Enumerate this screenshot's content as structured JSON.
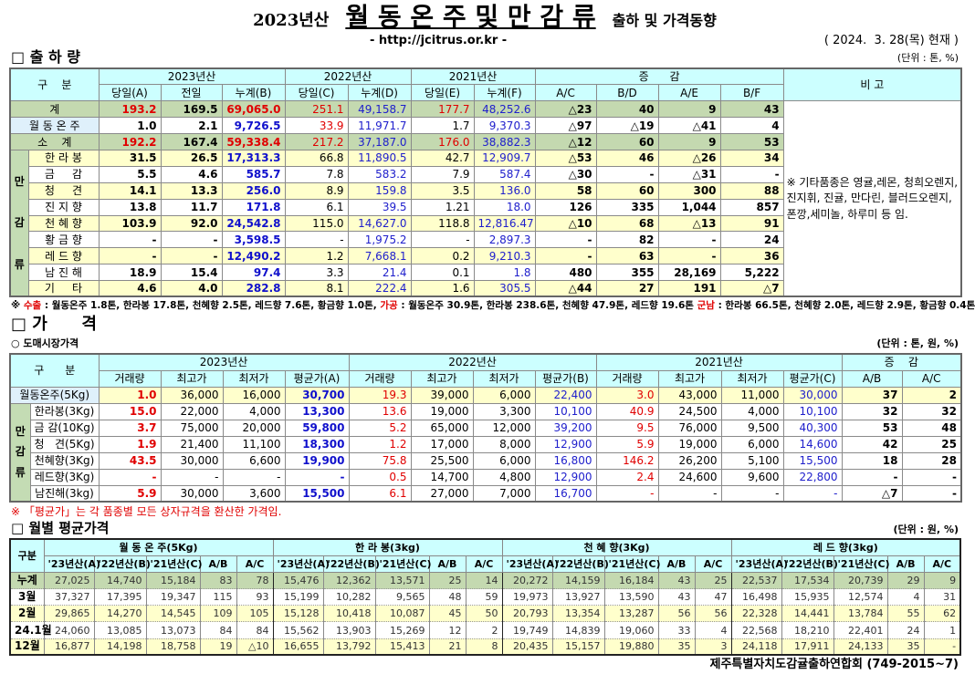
{
  "header": {
    "year": "2023년산",
    "title": "월 동 온 주 및 만 감 류",
    "subtitle": "출하 및 가격동향",
    "url": "- http://jcitrus.or.kr -",
    "date": "( 2024.  3. 28(목) 현재 )"
  },
  "shipment": {
    "heading": "□ 출 하 량",
    "unit": "(단위 : 톤, %)",
    "col_label": "구    분",
    "groups": [
      "2023년산",
      "2022년산",
      "2021년산",
      "증      감"
    ],
    "remark_header": "비 고",
    "subcols": [
      "당일(A)",
      "전일",
      "누계(B)",
      "당일(C)",
      "누계(D)",
      "당일(E)",
      "누계(F)",
      "A/C",
      "B/D",
      "A/E",
      "B/F"
    ],
    "mangam_label": "만\n\n감\n\n류",
    "rows": [
      {
        "label": "계",
        "values": [
          "193.2",
          "169.5",
          "69,065.0",
          "251.1",
          "49,158.7",
          "177.7",
          "48,252.6",
          "△23",
          "40",
          "9",
          "43"
        ]
      },
      {
        "label": "월 동 온 주",
        "values": [
          "1.0",
          "2.1",
          "9,726.5",
          "33.9",
          "11,971.7",
          "1.7",
          "9,370.3",
          "△97",
          "△19",
          "△41",
          "4"
        ]
      },
      {
        "label": "소    계",
        "values": [
          "192.2",
          "167.4",
          "59,338.4",
          "217.2",
          "37,187.0",
          "176.0",
          "38,882.3",
          "△12",
          "60",
          "9",
          "53"
        ]
      },
      {
        "label": "한 라 봉",
        "values": [
          "31.5",
          "26.5",
          "17,313.3",
          "66.8",
          "11,890.5",
          "42.7",
          "12,909.7",
          "△53",
          "46",
          "△26",
          "34"
        ]
      },
      {
        "label": "금     감",
        "values": [
          "5.5",
          "4.6",
          "585.7",
          "7.8",
          "583.2",
          "7.9",
          "587.4",
          "△30",
          "-",
          "△31",
          "-"
        ]
      },
      {
        "label": "청     견",
        "values": [
          "14.1",
          "13.3",
          "256.0",
          "8.9",
          "159.8",
          "3.5",
          "136.0",
          "58",
          "60",
          "300",
          "88"
        ]
      },
      {
        "label": "진 지 향",
        "values": [
          "13.8",
          "11.7",
          "171.8",
          "6.1",
          "39.5",
          "1.21",
          "18.0",
          "126",
          "335",
          "1,044",
          "857"
        ]
      },
      {
        "label": "천 혜 향",
        "values": [
          "103.9",
          "92.0",
          "24,542.8",
          "115.0",
          "14,627.0",
          "118.8",
          "12,816.47",
          "△10",
          "68",
          "△13",
          "91"
        ]
      },
      {
        "label": "황 금 향",
        "values": [
          "-",
          "-",
          "3,598.5",
          "-",
          "1,975.2",
          "-",
          "2,897.3",
          "-",
          "82",
          "-",
          "24"
        ]
      },
      {
        "label": "레 드 향",
        "values": [
          "-",
          "-",
          "12,490.2",
          "1.2",
          "7,668.1",
          "0.2",
          "9,210.3",
          "-",
          "63",
          "-",
          "36"
        ]
      },
      {
        "label": "남 진 해",
        "values": [
          "18.9",
          "15.4",
          "97.4",
          "3.3",
          "21.4",
          "0.1",
          "1.8",
          "480",
          "355",
          "28,169",
          "5,222"
        ]
      },
      {
        "label": "기     타",
        "values": [
          "4.6",
          "4.0",
          "282.8",
          "8.1",
          "222.4",
          "1.6",
          "305.5",
          "△44",
          "27",
          "191",
          "△7"
        ]
      }
    ],
    "remark": "※ 기타품종은 영귤,레몬, 청희오렌지, 진지휘, 진귤, 만다린, 블러드오렌지, 폰깡,세미놀, 하루미 등 임.",
    "footnote": [
      {
        "text": "※ ",
        "red": false
      },
      {
        "text": "수출",
        "red": true
      },
      {
        "text": " : 월동온주 1.8톤, 한라봉 17.8톤, 천혜향 2.5톤, 레드향 7.6톤, 황금향 1.0톤, ",
        "red": false
      },
      {
        "text": "가공",
        "red": true
      },
      {
        "text": " : 월동온주 30.9톤, 한라봉 238.6톤, 천혜향 47.9톤, 레드향 19.6톤 ",
        "red": false
      },
      {
        "text": "군남",
        "red": true
      },
      {
        "text": " : 한라봉 66.5톤, 천혜향 2.0톤, 레드향 2.9톤, 황금향 0.4톤",
        "red": false
      }
    ]
  },
  "price": {
    "heading": "□ 가      격",
    "subheading": "○ 도매시장가격",
    "unit": "(단위 : 톤, 원, %)",
    "col_label": "구      분",
    "groups": [
      "2023년산",
      "2022년산",
      "2021년산",
      "증    감"
    ],
    "subcols": [
      "거래량",
      "최고가",
      "최저가",
      "평균가(A)",
      "거래량",
      "최고가",
      "최저가",
      "평균가(B)",
      "거래량",
      "최고가",
      "최저가",
      "평균가(C)",
      "A/B",
      "A/C"
    ],
    "mangam_label": "만\n감\n류",
    "rows": [
      {
        "label": "월동온주(5Kg)",
        "values": [
          "1.0",
          "36,000",
          "16,000",
          "30,700",
          "19.3",
          "39,000",
          "6,000",
          "22,400",
          "3.0",
          "43,000",
          "11,000",
          "30,000",
          "37",
          "2"
        ]
      },
      {
        "label": "한라봉(3Kg)",
        "values": [
          "15.0",
          "22,000",
          "4,000",
          "13,300",
          "13.6",
          "19,000",
          "3,300",
          "10,100",
          "40.9",
          "24,500",
          "4,000",
          "10,100",
          "32",
          "32"
        ]
      },
      {
        "label": "금 감(10Kg)",
        "values": [
          "3.7",
          "75,000",
          "20,000",
          "59,800",
          "5.2",
          "65,000",
          "12,000",
          "39,200",
          "9.5",
          "76,000",
          "9,500",
          "40,300",
          "53",
          "48"
        ]
      },
      {
        "label": "청   견(5Kg)",
        "values": [
          "1.9",
          "21,400",
          "11,100",
          "18,300",
          "1.2",
          "17,000",
          "8,000",
          "12,900",
          "5.9",
          "19,000",
          "6,000",
          "14,600",
          "42",
          "25"
        ]
      },
      {
        "label": "천혜향(3Kg)",
        "values": [
          "43.5",
          "30,000",
          "6,600",
          "19,900",
          "75.8",
          "25,500",
          "6,000",
          "16,800",
          "146.2",
          "26,200",
          "5,100",
          "15,500",
          "18",
          "28"
        ]
      },
      {
        "label": "레드향(3Kg)",
        "values": [
          "-",
          "-",
          "-",
          "-",
          "0.5",
          "14,700",
          "4,800",
          "12,900",
          "2.4",
          "24,600",
          "9,600",
          "22,800",
          "-",
          "-"
        ]
      },
      {
        "label": "남진해(3kg)",
        "values": [
          "5.9",
          "30,000",
          "3,600",
          "15,500",
          "6.1",
          "27,000",
          "7,000",
          "16,700",
          "-",
          "-",
          "-",
          "-",
          "△7",
          "-"
        ]
      }
    ],
    "note": "※ 「평균가」는 각 품종별 모든 상자규격을 환산한 가격임."
  },
  "monthly": {
    "heading": "□ 월별 평균가격",
    "unit": "(단위 : 원, %)",
    "col_label": "구분",
    "groups": [
      "월 동 온 주(5Kg)",
      "한 라 봉(3kg)",
      "천 혜 향(3Kg)",
      "레 드 향(3kg)"
    ],
    "subcols": [
      "'23년산(A)",
      "'22년산(B)",
      "'21년산(C)",
      "A/B",
      "A/C"
    ],
    "rows": [
      {
        "label": "누계",
        "values": [
          "27,025",
          "14,740",
          "15,184",
          "83",
          "78",
          "15,476",
          "12,362",
          "13,571",
          "25",
          "14",
          "20,272",
          "14,159",
          "16,184",
          "43",
          "25",
          "22,537",
          "17,534",
          "20,739",
          "29",
          "9"
        ]
      },
      {
        "label": "3월",
        "values": [
          "37,327",
          "17,395",
          "19,347",
          "115",
          "93",
          "15,199",
          "10,282",
          "9,565",
          "48",
          "59",
          "19,973",
          "13,927",
          "13,590",
          "43",
          "47",
          "16,498",
          "15,935",
          "12,574",
          "4",
          "31"
        ]
      },
      {
        "label": "2월",
        "values": [
          "29,865",
          "14,270",
          "14,545",
          "109",
          "105",
          "15,128",
          "10,418",
          "10,087",
          "45",
          "50",
          "20,793",
          "13,354",
          "13,287",
          "56",
          "56",
          "22,328",
          "14,441",
          "13,784",
          "55",
          "62"
        ]
      },
      {
        "label": "24.1월",
        "values": [
          "24,060",
          "13,085",
          "13,073",
          "84",
          "84",
          "15,562",
          "13,903",
          "15,269",
          "12",
          "2",
          "19,749",
          "14,839",
          "19,060",
          "33",
          "4",
          "22,568",
          "18,210",
          "22,401",
          "24",
          "1"
        ]
      },
      {
        "label": "12월",
        "values": [
          "16,877",
          "14,198",
          "18,758",
          "19",
          "△10",
          "16,655",
          "13,792",
          "15,413",
          "21",
          "8",
          "20,435",
          "15,157",
          "19,880",
          "35",
          "3",
          "24,118",
          "17,911",
          "24,133",
          "35",
          "-"
        ]
      }
    ]
  },
  "footer": "제주특별자치도감귤출하연합회 (749-2015~7)",
  "colors": {
    "header_bg": "#ccffff",
    "total_row": "#c4d9b0",
    "alt_row": "#ffffcc",
    "red": "#e00000",
    "blue": "#1010cc"
  }
}
